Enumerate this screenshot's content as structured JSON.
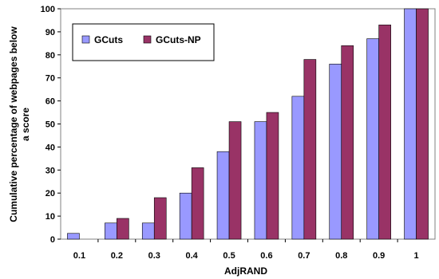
{
  "chart_data": {
    "type": "bar",
    "xlabel": "AdjRAND",
    "ylabel_lines": [
      "Cumulative percentage of webpages below",
      "a score"
    ],
    "categories": [
      "0.1",
      "0.2",
      "0.3",
      "0.4",
      "0.5",
      "0.6",
      "0.7",
      "0.8",
      "0.9",
      "1"
    ],
    "ylim": [
      0,
      100
    ],
    "yticks": [
      "0",
      "10",
      "20",
      "30",
      "40",
      "50",
      "60",
      "70",
      "80",
      "90",
      "100"
    ],
    "grid": false,
    "legend_position": "top-left",
    "series": [
      {
        "name": "GCuts",
        "color": "#9999ff",
        "values": [
          2.5,
          7,
          7,
          20,
          38,
          51,
          62,
          76,
          87,
          100
        ]
      },
      {
        "name": "GCuts-NP",
        "color": "#993366",
        "values": [
          0,
          9,
          18,
          31,
          51,
          55,
          78,
          84,
          93,
          100
        ]
      }
    ]
  }
}
